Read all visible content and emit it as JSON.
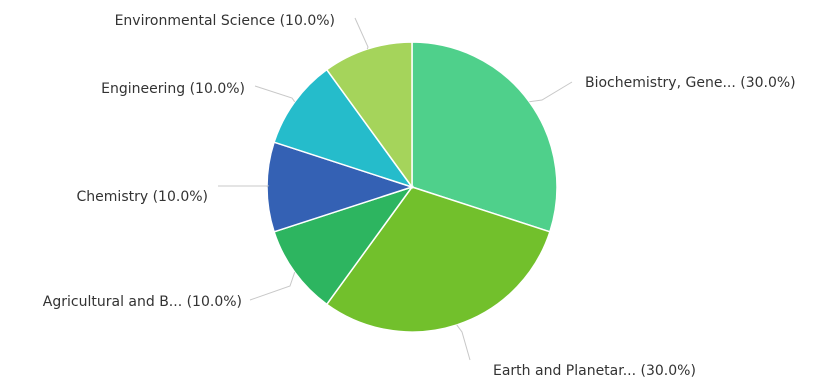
{
  "chart_data": {
    "type": "pie",
    "slices": [
      {
        "label": "Biochemistry, Gene... (30.0%)",
        "value": 30.0,
        "color": "#4fd08b"
      },
      {
        "label": "Earth and Planetar... (30.0%)",
        "value": 30.0,
        "color": "#72c02c"
      },
      {
        "label": "Agricultural and B... (10.0%)",
        "value": 10.0,
        "color": "#2db560"
      },
      {
        "label": "Chemistry (10.0%)",
        "value": 10.0,
        "color": "#3461b4"
      },
      {
        "label": "Engineering (10.0%)",
        "value": 10.0,
        "color": "#25bccb"
      },
      {
        "label": "Environmental Science (10.0%)",
        "value": 10.0,
        "color": "#a5d45b"
      }
    ]
  }
}
